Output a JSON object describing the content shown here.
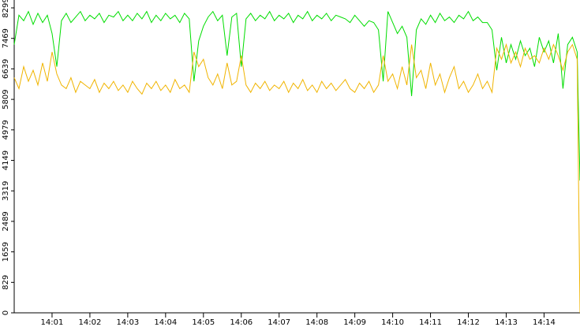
{
  "chart_data": {
    "type": "line",
    "xlim": [
      0,
      14.95
    ],
    "xticks": [
      {
        "value": 1,
        "label": "14:01"
      },
      {
        "value": 2,
        "label": "14:02"
      },
      {
        "value": 3,
        "label": "14:03"
      },
      {
        "value": 4,
        "label": "14:04"
      },
      {
        "value": 5,
        "label": "14:05"
      },
      {
        "value": 6,
        "label": "14:06"
      },
      {
        "value": 7,
        "label": "14:07"
      },
      {
        "value": 8,
        "label": "14:08"
      },
      {
        "value": 9,
        "label": "14:09"
      },
      {
        "value": 10,
        "label": "14:10"
      },
      {
        "value": 11,
        "label": "14:11"
      },
      {
        "value": 12,
        "label": "14:12"
      },
      {
        "value": 13,
        "label": "14:13"
      },
      {
        "value": 14,
        "label": "14:14"
      }
    ],
    "ylim": [
      0,
      8299
    ],
    "yticks": [
      0,
      829,
      1659,
      2489,
      3319,
      4149,
      4979,
      5809,
      6639,
      7469,
      8299
    ],
    "x": [
      0,
      0.125,
      0.25,
      0.375,
      0.5,
      0.625,
      0.75,
      0.875,
      1,
      1.125,
      1.25,
      1.375,
      1.5,
      1.625,
      1.75,
      1.875,
      2,
      2.125,
      2.25,
      2.375,
      2.5,
      2.625,
      2.75,
      2.875,
      3,
      3.125,
      3.25,
      3.375,
      3.5,
      3.625,
      3.75,
      3.875,
      4,
      4.125,
      4.25,
      4.375,
      4.5,
      4.625,
      4.75,
      4.875,
      5,
      5.125,
      5.25,
      5.375,
      5.5,
      5.625,
      5.75,
      5.875,
      6,
      6.125,
      6.25,
      6.375,
      6.5,
      6.625,
      6.75,
      6.875,
      7,
      7.125,
      7.25,
      7.375,
      7.5,
      7.625,
      7.75,
      7.875,
      8,
      8.125,
      8.25,
      8.375,
      8.5,
      8.625,
      8.75,
      8.875,
      9,
      9.125,
      9.25,
      9.375,
      9.5,
      9.625,
      9.75,
      9.875,
      10,
      10.125,
      10.25,
      10.375,
      10.5,
      10.625,
      10.75,
      10.875,
      11,
      11.125,
      11.25,
      11.375,
      11.5,
      11.625,
      11.75,
      11.875,
      12,
      12.125,
      12.25,
      12.375,
      12.5,
      12.625,
      12.75,
      12.875,
      13,
      13.125,
      13.25,
      13.375,
      13.5,
      13.625,
      13.75,
      13.875,
      14,
      14.125,
      14.25,
      14.375,
      14.5,
      14.625,
      14.75,
      14.875,
      14.95
    ],
    "series": [
      {
        "color": "#00dd00",
        "values": [
          7300,
          8100,
          7950,
          8200,
          7850,
          8150,
          7900,
          8100,
          7600,
          6700,
          7950,
          8150,
          7900,
          8050,
          8200,
          7950,
          8100,
          8000,
          8150,
          7900,
          8100,
          8050,
          8200,
          7950,
          8100,
          7950,
          8150,
          8000,
          8200,
          7900,
          8100,
          7950,
          8150,
          8000,
          8100,
          7900,
          8150,
          8000,
          6300,
          7400,
          7800,
          8050,
          8200,
          7950,
          8100,
          7000,
          8050,
          8150,
          6700,
          8000,
          8150,
          7950,
          8100,
          8000,
          8200,
          7950,
          8100,
          8000,
          8150,
          7900,
          8100,
          8000,
          8200,
          7950,
          8100,
          8000,
          8150,
          7950,
          8100,
          8050,
          8000,
          7900,
          8100,
          7950,
          7800,
          7950,
          7900,
          7700,
          6300,
          8200,
          7900,
          7600,
          7800,
          7500,
          5900,
          7700,
          8000,
          7850,
          8100,
          7900,
          8150,
          7950,
          8050,
          7900,
          8100,
          8000,
          8200,
          7950,
          8050,
          7900,
          7900,
          7700,
          6600,
          7500,
          6800,
          7300,
          6900,
          7400,
          7000,
          7200,
          6700,
          7500,
          7100,
          7400,
          6800,
          7600,
          6100,
          7300,
          7500,
          7100,
          3600
        ]
      },
      {
        "color": "#f0b400",
        "values": [
          6400,
          6100,
          6700,
          6300,
          6600,
          6200,
          6800,
          6300,
          7100,
          6500,
          6200,
          6100,
          6400,
          6000,
          6300,
          6200,
          6100,
          6350,
          6000,
          6250,
          6100,
          6300,
          6050,
          6200,
          6000,
          6300,
          6100,
          5950,
          6250,
          6100,
          6300,
          6050,
          6200,
          6000,
          6350,
          6100,
          6200,
          6000,
          7100,
          6700,
          6900,
          6400,
          6200,
          6500,
          6100,
          6800,
          6200,
          6300,
          7000,
          6200,
          6000,
          6250,
          6100,
          6300,
          6050,
          6200,
          6100,
          6300,
          6000,
          6250,
          6100,
          6350,
          6050,
          6200,
          6000,
          6300,
          6100,
          6250,
          6050,
          6200,
          6350,
          6100,
          6000,
          6250,
          6100,
          6300,
          6000,
          6200,
          7000,
          6300,
          6500,
          6100,
          6700,
          6200,
          7300,
          6400,
          6600,
          6100,
          6800,
          6200,
          6500,
          6000,
          6400,
          6700,
          6100,
          6300,
          6000,
          6200,
          6500,
          6100,
          6300,
          6000,
          7200,
          6900,
          7300,
          6800,
          7100,
          6700,
          7200,
          6900,
          7000,
          6800,
          7200,
          6900,
          7300,
          7000,
          6600,
          7100,
          7300,
          6900,
          0
        ]
      }
    ]
  }
}
